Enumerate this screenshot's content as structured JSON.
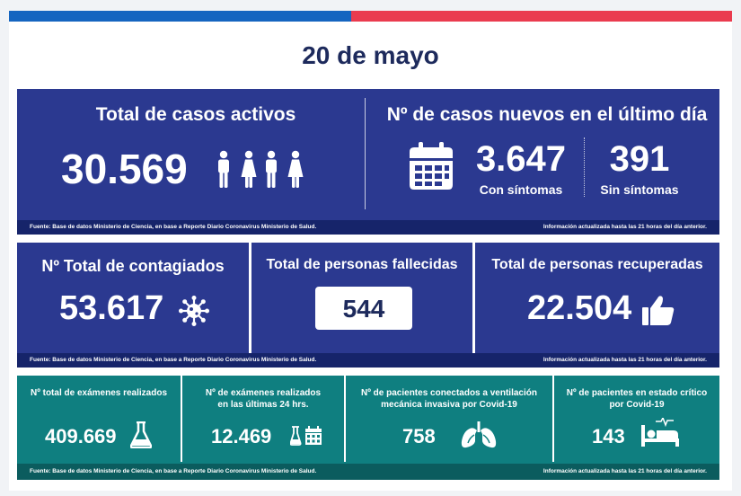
{
  "date": "20 de mayo",
  "row1": {
    "active": {
      "title": "Total de casos activos",
      "value": "30.569"
    },
    "new_cases": {
      "title": "Nº de casos nuevos en el último día",
      "symptomatic_value": "3.647",
      "symptomatic_label": "Con síntomas",
      "asymptomatic_value": "391",
      "asymptomatic_label": "Sin síntomas"
    },
    "source": "Fuente: Base de datos Ministerio de Ciencia, en base a Reporte Diario Coronavirus Ministerio de Salud.",
    "updated": "Información actualizada hasta las 21 horas  del día anterior."
  },
  "row2": {
    "infected": {
      "title": "Nº Total de contagiados",
      "value": "53.617"
    },
    "deceased": {
      "title": "Total de personas fallecidas",
      "value": "544"
    },
    "recovered": {
      "title": "Total de personas recuperadas",
      "value": "22.504"
    },
    "source": "Fuente: Base de datos Ministerio de Ciencia, en base a Reporte Diario Coronavirus Ministerio de Salud.",
    "updated": "Información actualizada hasta las 21 horas  del día anterior."
  },
  "row3": {
    "exams_total": {
      "title": "Nº total de exámenes realizados",
      "value": "409.669"
    },
    "exams_24h": {
      "title_line1": "Nº de exámenes realizados",
      "title_line2": "en las últimas 24 hrs.",
      "value": "12.469"
    },
    "ventilation": {
      "title_line1": "Nº de pacientes conectados a ventilación",
      "title_line2": "mecánica invasiva por Covid-19",
      "value": "758"
    },
    "critical": {
      "title_line1": "Nº de pacientes en estado crítico",
      "title_line2": "por Covid-19",
      "value": "143"
    },
    "source": "Fuente: Base de datos Ministerio de Ciencia, en base a Reporte Diario Coronavirus Ministerio de Salud.",
    "updated": "Información actualizada hasta las 21 horas  del día anterior."
  },
  "icons": {
    "people": "people-icon",
    "calendar": "calendar-icon",
    "virus": "virus-icon",
    "thumbs_up": "thumbs-up-icon",
    "flask": "flask-icon",
    "flask_calendar": "flask-calendar-icon",
    "lungs": "lungs-icon",
    "hospital_bed": "hospital-bed-icon"
  },
  "colors": {
    "navy_panel": "#2b3990",
    "teal_panel": "#0f7f80",
    "stripe_blue": "#1565c0",
    "stripe_red": "#ea3b4f",
    "date_text": "#1d2a5c"
  }
}
